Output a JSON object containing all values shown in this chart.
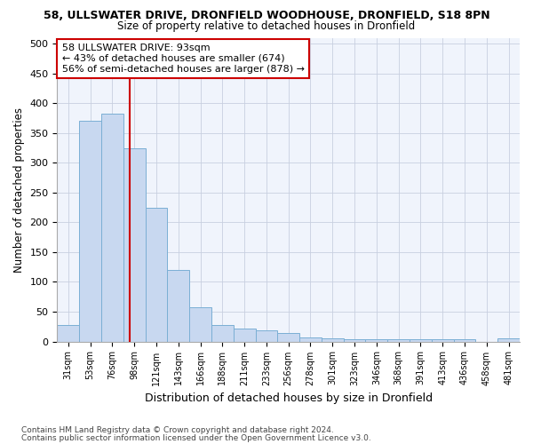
{
  "title1": "58, ULLSWATER DRIVE, DRONFIELD WOODHOUSE, DRONFIELD, S18 8PN",
  "title2": "Size of property relative to detached houses in Dronfield",
  "xlabel": "Distribution of detached houses by size in Dronfield",
  "ylabel": "Number of detached properties",
  "bar_labels": [
    "31sqm",
    "53sqm",
    "76sqm",
    "98sqm",
    "121sqm",
    "143sqm",
    "166sqm",
    "188sqm",
    "211sqm",
    "233sqm",
    "256sqm",
    "278sqm",
    "301sqm",
    "323sqm",
    "346sqm",
    "368sqm",
    "391sqm",
    "413sqm",
    "436sqm",
    "458sqm",
    "481sqm"
  ],
  "bar_values": [
    28,
    370,
    383,
    325,
    225,
    120,
    58,
    28,
    22,
    19,
    15,
    7,
    5,
    4,
    4,
    4,
    4,
    4,
    4,
    0,
    5
  ],
  "bar_color": "#c8d8f0",
  "bar_edge_color": "#7bafd4",
  "annotation_line1": "58 ULLSWATER DRIVE: 93sqm",
  "annotation_line2": "← 43% of detached houses are smaller (674)",
  "annotation_line3": "56% of semi-detached houses are larger (878) →",
  "annotation_box_color": "#ffffff",
  "annotation_box_edge": "#cc0000",
  "ylim": [
    0,
    510
  ],
  "yticks": [
    0,
    50,
    100,
    150,
    200,
    250,
    300,
    350,
    400,
    450,
    500
  ],
  "footnote1": "Contains HM Land Registry data © Crown copyright and database right 2024.",
  "footnote2": "Contains public sector information licensed under the Open Government Licence v3.0.",
  "background_color": "#ffffff",
  "plot_bg_color": "#f0f4fc",
  "grid_color": "#c8cfe0"
}
